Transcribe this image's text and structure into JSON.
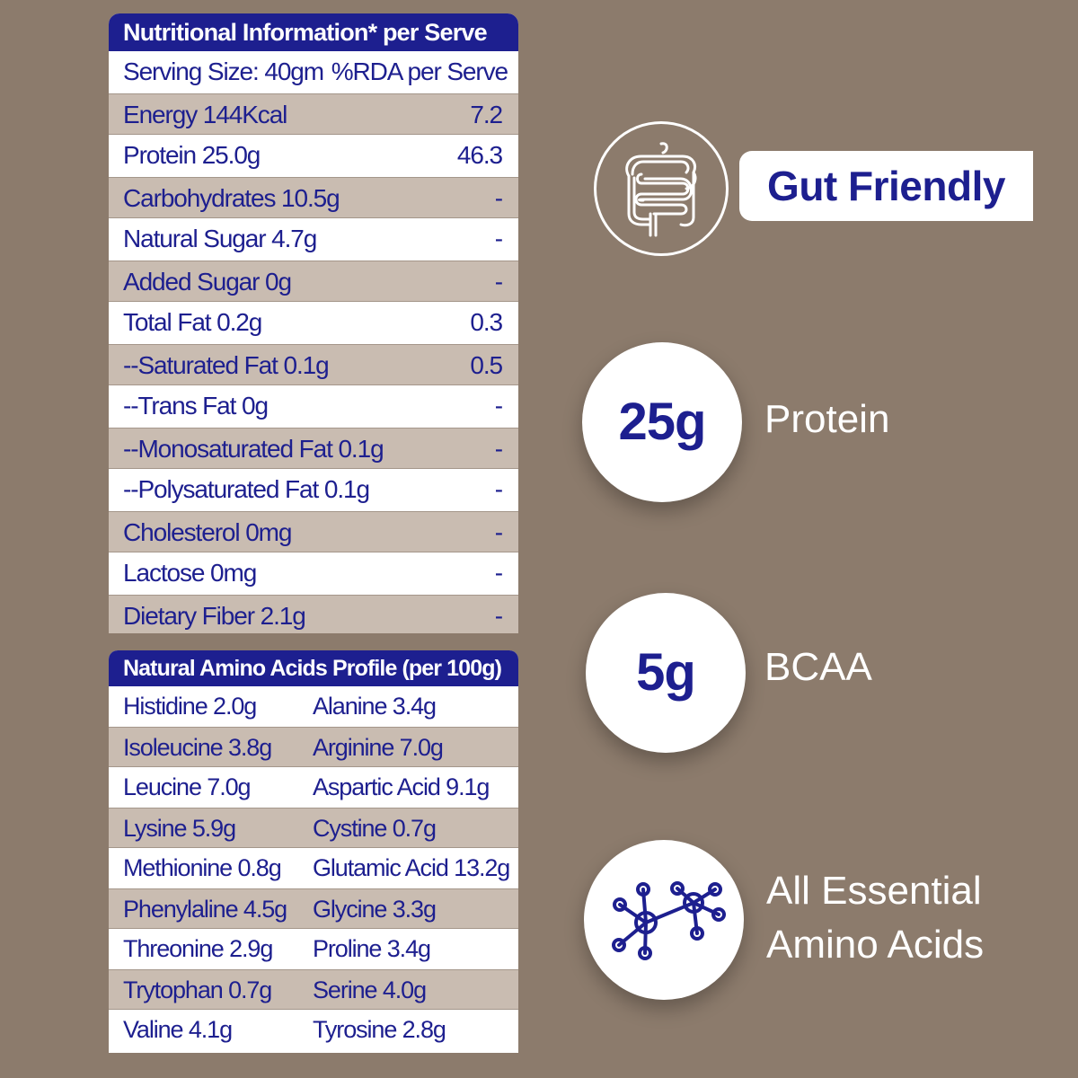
{
  "nutrition": {
    "title": "Nutritional Information* per Serve",
    "serving_size": "Serving Size: 40gm",
    "rda_header": "%RDA per Serve",
    "rows": [
      {
        "label": "Energy 144Kcal",
        "rda": "7.2"
      },
      {
        "label": "Protein 25.0g",
        "rda": "46.3"
      },
      {
        "label": "Carbohydrates 10.5g",
        "rda": "-"
      },
      {
        "label": "Natural Sugar 4.7g",
        "rda": "-"
      },
      {
        "label": "Added Sugar 0g",
        "rda": "-"
      },
      {
        "label": "Total Fat 0.2g",
        "rda": "0.3"
      },
      {
        "label": "--Saturated Fat 0.1g",
        "rda": "0.5"
      },
      {
        "label": "--Trans Fat 0g",
        "rda": "-"
      },
      {
        "label": "--Monosaturated Fat 0.1g",
        "rda": "-"
      },
      {
        "label": "--Polysaturated Fat 0.1g",
        "rda": "-"
      },
      {
        "label": "Cholesterol 0mg",
        "rda": "-"
      },
      {
        "label": "Lactose 0mg",
        "rda": "-"
      },
      {
        "label": "Dietary Fiber 2.1g",
        "rda": "-"
      }
    ]
  },
  "amino": {
    "title": "Natural Amino Acids Profile (per 100g)",
    "rows": [
      {
        "left": "Histidine 2.0g",
        "right": "Alanine 3.4g"
      },
      {
        "left": "Isoleucine 3.8g",
        "right": "Arginine 7.0g"
      },
      {
        "left": "Leucine 7.0g",
        "right": "Aspartic Acid 9.1g"
      },
      {
        "left": "Lysine 5.9g",
        "right": "Cystine 0.7g"
      },
      {
        "left": "Methionine 0.8g",
        "right": "Glutamic Acid 13.2g"
      },
      {
        "left": "Phenylaline 4.5g",
        "right": "Glycine 3.3g"
      },
      {
        "left": "Threonine 2.9g",
        "right": "Proline 3.4g"
      },
      {
        "left": "Trytophan 0.7g",
        "right": "Serine 4.0g"
      },
      {
        "left": "Valine 4.1g",
        "right": "Tyrosine 2.8g"
      }
    ]
  },
  "features": {
    "gut": {
      "icon": "intestine-icon",
      "label": "Gut Friendly"
    },
    "protein": {
      "value": "25g",
      "label": "Protein"
    },
    "bcaa": {
      "value": "5g",
      "label": "BCAA"
    },
    "amino": {
      "icon": "molecule-icon",
      "label_line1": "All Essential",
      "label_line2": "Amino Acids"
    }
  },
  "colors": {
    "background": "#8c7b6c",
    "brand_blue": "#1d1f8f",
    "row_shade": "#c9bcb1",
    "white": "#ffffff"
  }
}
